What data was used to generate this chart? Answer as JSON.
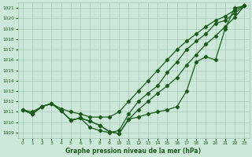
{
  "xlabel": "Graphe pression niveau de la mer (hPa)",
  "ylim": [
    1008.5,
    1021.5
  ],
  "xlim": [
    -0.5,
    23.5
  ],
  "yticks": [
    1009,
    1010,
    1011,
    1012,
    1013,
    1014,
    1015,
    1016,
    1017,
    1018,
    1019,
    1020,
    1021
  ],
  "xticks": [
    0,
    1,
    2,
    3,
    4,
    5,
    6,
    7,
    8,
    9,
    10,
    11,
    12,
    13,
    14,
    15,
    16,
    17,
    18,
    19,
    20,
    21,
    22,
    23
  ],
  "bg_color": "#cce8d8",
  "grid_color": "#aaccbb",
  "line_color": "#1a5c1a",
  "series1": [
    1011.2,
    1010.8,
    1011.5,
    1011.8,
    1011.1,
    1010.2,
    1010.4,
    1010.1,
    1009.7,
    1009.1,
    1008.9,
    1010.3,
    1010.5,
    1010.8,
    1011.0,
    1011.2,
    1011.5,
    1013.0,
    1015.8,
    1016.3,
    1016.0,
    1019.0,
    1021.0,
    1021.2
  ],
  "series2": [
    1011.2,
    1010.8,
    1011.5,
    1011.8,
    1011.1,
    1010.2,
    1010.4,
    1010.1,
    1009.7,
    1009.1,
    1008.9,
    1010.3,
    1011.2,
    1012.0,
    1012.8,
    1013.5,
    1014.3,
    1015.5,
    1016.5,
    1017.5,
    1018.3,
    1019.2,
    1020.1,
    1021.2
  ],
  "series3": [
    1011.2,
    1010.8,
    1011.5,
    1011.8,
    1011.1,
    1010.2,
    1010.4,
    1009.5,
    1009.2,
    1009.0,
    1009.2,
    1010.8,
    1012.0,
    1012.8,
    1013.5,
    1014.8,
    1015.8,
    1017.0,
    1017.8,
    1018.5,
    1019.5,
    1019.8,
    1020.5,
    1021.2
  ],
  "series4": [
    1011.2,
    1011.0,
    1011.5,
    1011.8,
    1011.3,
    1011.0,
    1010.8,
    1010.5,
    1010.5,
    1010.5,
    1011.0,
    1012.0,
    1013.0,
    1014.0,
    1015.0,
    1016.0,
    1017.0,
    1017.8,
    1018.5,
    1019.2,
    1019.8,
    1020.2,
    1020.8,
    1021.2
  ]
}
